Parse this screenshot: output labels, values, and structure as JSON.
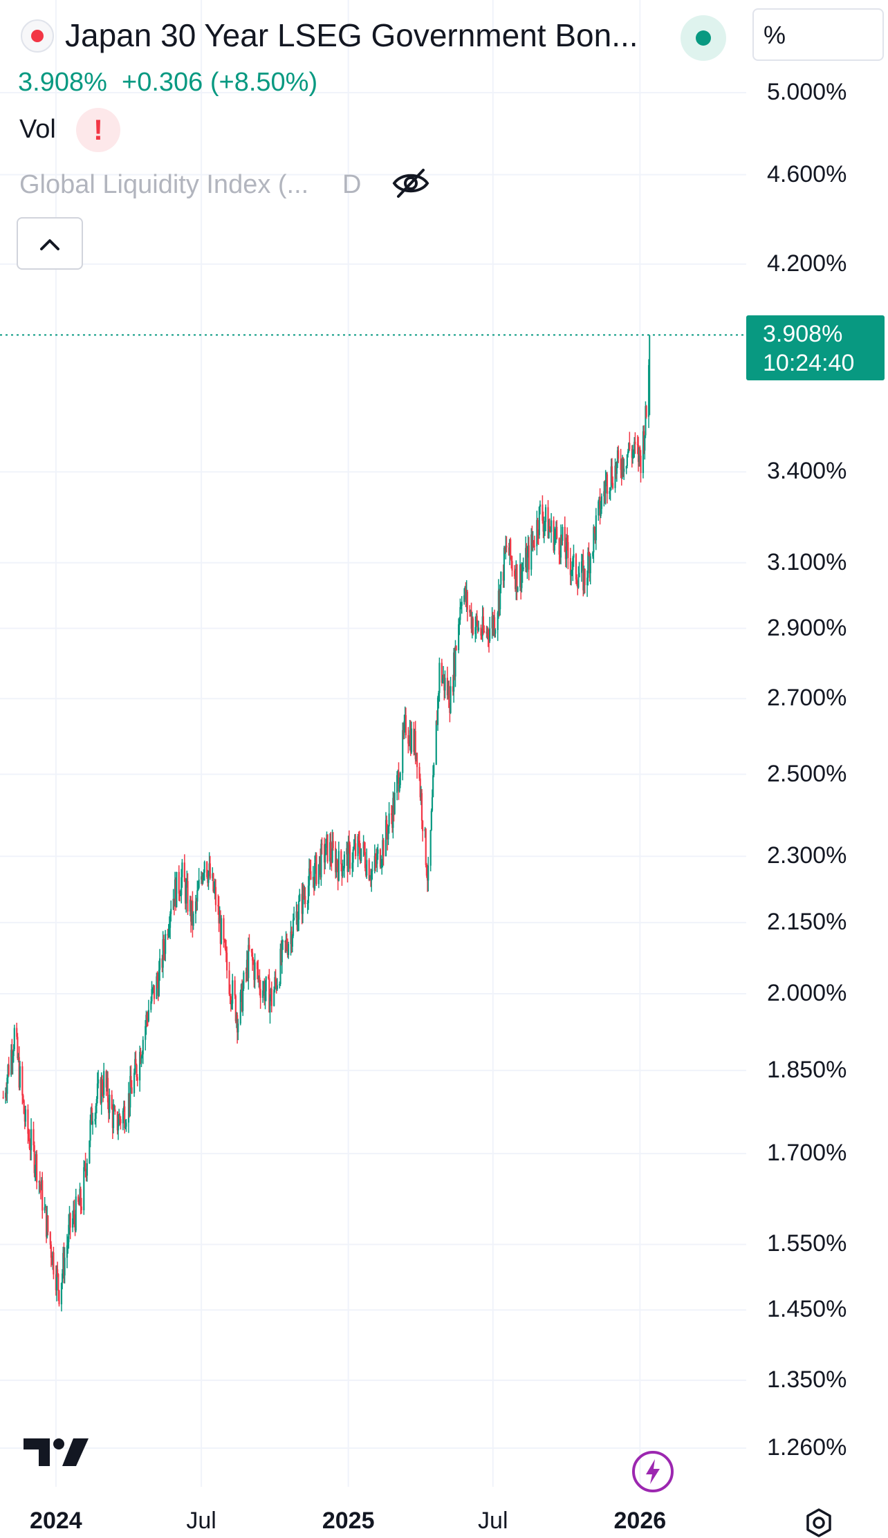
{
  "header": {
    "title": "Japan 30 Year LSEG Government Bon...",
    "unit_button": "%",
    "price": "3.908%",
    "change": "+0.306",
    "change_pct": "(+8.50%)",
    "vol_label": "Vol",
    "warning_glyph": "!",
    "indicator_name": "Global Liquidity Index (...",
    "indicator_interval": "D"
  },
  "last_price": {
    "value": "3.908%",
    "countdown": "10:24:40"
  },
  "colors": {
    "up": "#089981",
    "down": "#f23645",
    "grid": "#f0f3fa"
  },
  "icons": [
    "tradingview-logo-icon",
    "flash-icon",
    "settings-icon",
    "eye-off-icon",
    "chevron-up-icon"
  ],
  "chart_data": {
    "type": "candlestick",
    "scale": "log",
    "y_ticks": [
      "5.000%",
      "4.600%",
      "4.200%",
      "3.400%",
      "3.100%",
      "2.900%",
      "2.700%",
      "2.500%",
      "2.300%",
      "2.150%",
      "2.000%",
      "1.850%",
      "1.700%",
      "1.550%",
      "1.450%",
      "1.350%",
      "1.260%"
    ],
    "y_tick_values": [
      5.0,
      4.6,
      4.2,
      3.4,
      3.1,
      2.9,
      2.7,
      2.5,
      2.3,
      2.15,
      2.0,
      1.85,
      1.7,
      1.55,
      1.45,
      1.35,
      1.26
    ],
    "x_ticks": [
      {
        "label": "2024",
        "date": "2024-01-01",
        "bold": true
      },
      {
        "label": "Jul",
        "date": "2024-07-01",
        "bold": false
      },
      {
        "label": "2025",
        "date": "2025-01-01",
        "bold": true
      },
      {
        "label": "Jul",
        "date": "2025-07-01",
        "bold": false
      },
      {
        "label": "2026",
        "date": "2026-01-01",
        "bold": true
      }
    ],
    "x_range": [
      "2023-10-23",
      "2026-05-14"
    ],
    "series": [
      {
        "points": [
          [
            "2023-10-27",
            1.8
          ],
          [
            "2023-11-10",
            1.92
          ],
          [
            "2023-11-24",
            1.75
          ],
          [
            "2023-12-08",
            1.68
          ],
          [
            "2023-12-22",
            1.57
          ],
          [
            "2024-01-05",
            1.48
          ],
          [
            "2024-01-19",
            1.58
          ],
          [
            "2024-02-02",
            1.62
          ],
          [
            "2024-02-16",
            1.78
          ],
          [
            "2024-03-01",
            1.83
          ],
          [
            "2024-03-15",
            1.75
          ],
          [
            "2024-03-29",
            1.78
          ],
          [
            "2024-04-12",
            1.86
          ],
          [
            "2024-04-26",
            1.97
          ],
          [
            "2024-05-10",
            2.04
          ],
          [
            "2024-05-24",
            2.2
          ],
          [
            "2024-06-07",
            2.25
          ],
          [
            "2024-06-21",
            2.15
          ],
          [
            "2024-07-05",
            2.3
          ],
          [
            "2024-07-19",
            2.2
          ],
          [
            "2024-08-02",
            2.05
          ],
          [
            "2024-08-16",
            1.95
          ],
          [
            "2024-08-30",
            2.08
          ],
          [
            "2024-09-13",
            2.02
          ],
          [
            "2024-09-27",
            1.99
          ],
          [
            "2024-10-11",
            2.08
          ],
          [
            "2024-10-25",
            2.15
          ],
          [
            "2024-11-08",
            2.22
          ],
          [
            "2024-11-22",
            2.27
          ],
          [
            "2024-12-06",
            2.32
          ],
          [
            "2024-12-20",
            2.28
          ],
          [
            "2025-01-03",
            2.3
          ],
          [
            "2025-01-17",
            2.32
          ],
          [
            "2025-01-31",
            2.26
          ],
          [
            "2025-02-14",
            2.33
          ],
          [
            "2025-02-28",
            2.43
          ],
          [
            "2025-03-14",
            2.63
          ],
          [
            "2025-03-28",
            2.56
          ],
          [
            "2025-04-11",
            2.24
          ],
          [
            "2025-04-25",
            2.78
          ],
          [
            "2025-05-09",
            2.7
          ],
          [
            "2025-05-23",
            3.02
          ],
          [
            "2025-06-06",
            2.92
          ],
          [
            "2025-06-20",
            2.88
          ],
          [
            "2025-07-04",
            2.93
          ],
          [
            "2025-07-18",
            3.15
          ],
          [
            "2025-08-01",
            3.05
          ],
          [
            "2025-08-15",
            3.12
          ],
          [
            "2025-08-29",
            3.26
          ],
          [
            "2025-09-12",
            3.2
          ],
          [
            "2025-09-26",
            3.16
          ],
          [
            "2025-10-10",
            3.08
          ],
          [
            "2025-10-24",
            3.05
          ],
          [
            "2025-11-07",
            3.22
          ],
          [
            "2025-11-21",
            3.38
          ],
          [
            "2025-12-05",
            3.42
          ],
          [
            "2025-12-19",
            3.48
          ],
          [
            "2026-01-02",
            3.45
          ],
          [
            "2026-01-09",
            3.602
          ],
          [
            "2026-01-13",
            3.908
          ]
        ]
      }
    ]
  }
}
